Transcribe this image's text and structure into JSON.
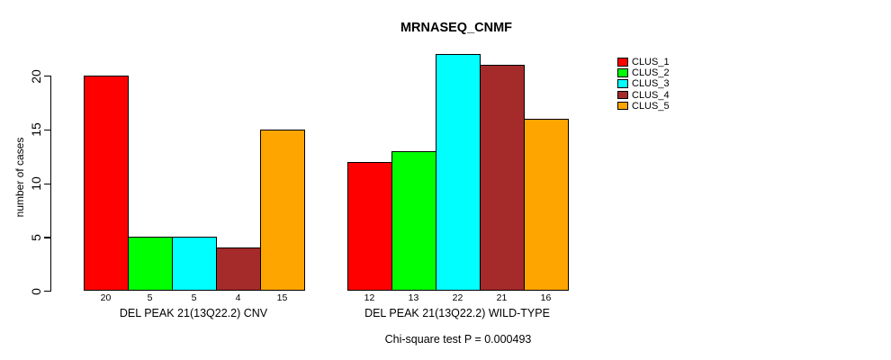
{
  "title": "MRNASEQ_CNMF",
  "chart_data": {
    "type": "bar",
    "title": "MRNASEQ_CNMF",
    "ylabel": "number of cases",
    "xlabel": "",
    "yticks": [
      0,
      5,
      10,
      15,
      20
    ],
    "ylim": [
      0,
      22
    ],
    "grid": false,
    "legend_position": "right",
    "series": [
      "CLUS_1",
      "CLUS_2",
      "CLUS_3",
      "CLUS_4",
      "CLUS_5"
    ],
    "colors": [
      "#FF0000",
      "#00FF00",
      "#00FFFF",
      "#A52A2A",
      "#FFA500"
    ],
    "groups": [
      {
        "label": "DEL PEAK 21(13Q22.2) CNV",
        "values": [
          20,
          5,
          5,
          4,
          15
        ]
      },
      {
        "label": "DEL PEAK 21(13Q22.2) WILD-TYPE",
        "values": [
          12,
          13,
          22,
          21,
          16
        ]
      }
    ],
    "bar_value_labels_shown": true,
    "annotation": "Chi-square test P = 0.000493"
  },
  "legend": {
    "items": [
      {
        "label": "CLUS_1",
        "color": "#FF0000"
      },
      {
        "label": "CLUS_2",
        "color": "#00FF00"
      },
      {
        "label": "CLUS_3",
        "color": "#00FFFF"
      },
      {
        "label": "CLUS_4",
        "color": "#A52A2A"
      },
      {
        "label": "CLUS_5",
        "color": "#FFA500"
      }
    ]
  }
}
